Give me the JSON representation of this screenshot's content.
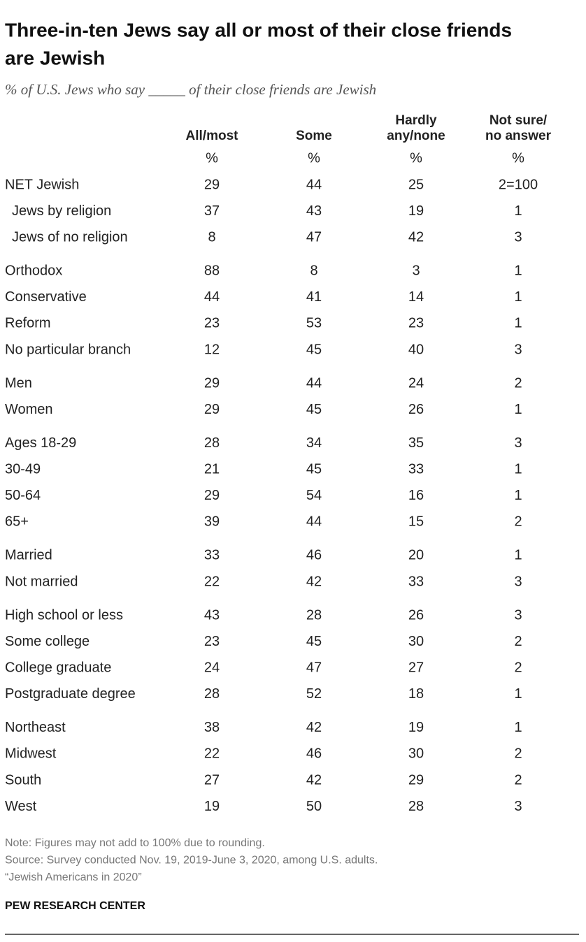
{
  "header": {
    "title_lines": [
      "Three-in-ten Jews say all or most of their close friends",
      "are Jewish"
    ],
    "subtitle": "% of U.S. Jews who say _____ of their close friends are Jewish"
  },
  "table": {
    "columns": [
      [
        "All/most"
      ],
      [
        "Some"
      ],
      [
        "Hardly",
        "any/none"
      ],
      [
        "Not sure/",
        "no answer"
      ]
    ],
    "units": [
      "%",
      "%",
      "%",
      "%"
    ],
    "groups": [
      [
        {
          "label": "NET Jewish",
          "values": [
            29,
            44,
            25,
            "2=100"
          ]
        },
        {
          "label": "Jews by religion",
          "indent": true,
          "values": [
            37,
            43,
            19,
            1
          ]
        },
        {
          "label": "Jews of no religion",
          "indent": true,
          "values": [
            8,
            47,
            42,
            3
          ]
        }
      ],
      [
        {
          "label": "Orthodox",
          "values": [
            88,
            8,
            3,
            1
          ]
        },
        {
          "label": "Conservative",
          "values": [
            44,
            41,
            14,
            1
          ]
        },
        {
          "label": "Reform",
          "values": [
            23,
            53,
            23,
            1
          ]
        },
        {
          "label": "No particular branch",
          "values": [
            12,
            45,
            40,
            3
          ]
        }
      ],
      [
        {
          "label": "Men",
          "values": [
            29,
            44,
            24,
            2
          ]
        },
        {
          "label": "Women",
          "values": [
            29,
            45,
            26,
            1
          ]
        }
      ],
      [
        {
          "label": "Ages 18-29",
          "values": [
            28,
            34,
            35,
            3
          ]
        },
        {
          "label": "30-49",
          "values": [
            21,
            45,
            33,
            1
          ]
        },
        {
          "label": "50-64",
          "values": [
            29,
            54,
            16,
            1
          ]
        },
        {
          "label": "65+",
          "values": [
            39,
            44,
            15,
            2
          ]
        }
      ],
      [
        {
          "label": "Married",
          "values": [
            33,
            46,
            20,
            1
          ]
        },
        {
          "label": "Not married",
          "values": [
            22,
            42,
            33,
            3
          ]
        }
      ],
      [
        {
          "label": "High school or less",
          "values": [
            43,
            28,
            26,
            3
          ]
        },
        {
          "label": "Some college",
          "values": [
            23,
            45,
            30,
            2
          ]
        },
        {
          "label": "College graduate",
          "values": [
            24,
            47,
            27,
            2
          ]
        },
        {
          "label": "Postgraduate degree",
          "values": [
            28,
            52,
            18,
            1
          ]
        }
      ],
      [
        {
          "label": "Northeast",
          "values": [
            38,
            42,
            19,
            1
          ]
        },
        {
          "label": "Midwest",
          "values": [
            22,
            46,
            30,
            2
          ]
        },
        {
          "label": "South",
          "values": [
            27,
            42,
            29,
            2
          ]
        },
        {
          "label": "West",
          "values": [
            19,
            50,
            28,
            3
          ]
        }
      ]
    ]
  },
  "footer": {
    "notes": [
      "Note: Figures may not add to 100% due to rounding.",
      "Source: Survey conducted Nov. 19, 2019-June 3, 2020, among U.S. adults.",
      "“Jewish Americans in 2020”"
    ],
    "brand": "PEW RESEARCH CENTER"
  }
}
